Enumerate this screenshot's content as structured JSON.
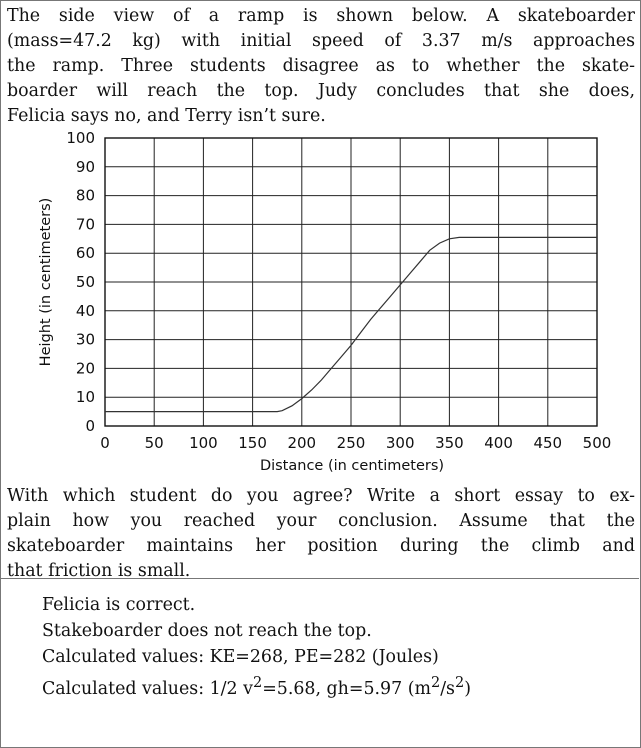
{
  "header_fragment": "",
  "problem": {
    "intro_lines": [
      "The side view of a ramp is shown below.  A skateboarder",
      "(mass=47.2 kg) with initial speed of 3.37 m/s approaches",
      "the ramp.  Three students disagree as to whether the skate-",
      "boarder will reach the top.  Judy concludes that she does,",
      "Felicia says no, and Terry isn’t sure."
    ],
    "question_lines": [
      "With which student do you agree? Write a short essay to ex-",
      "plain how you reached your conclusion.  Assume that the",
      "skateboarder maintains her position during the climb and",
      "that friction is small."
    ]
  },
  "chart_data": {
    "type": "line",
    "title": "",
    "xlabel": "Distance (in centimeters)",
    "ylabel": "Height (in centimeters)",
    "xlim": [
      0,
      500
    ],
    "ylim": [
      0,
      100
    ],
    "x_ticks": [
      0,
      50,
      100,
      150,
      200,
      250,
      300,
      350,
      400,
      450,
      500
    ],
    "y_ticks": [
      0,
      10,
      20,
      30,
      40,
      50,
      60,
      70,
      80,
      90,
      100
    ],
    "grid": true,
    "series": [
      {
        "x": [
          0,
          150,
          165,
          175,
          180,
          190,
          200,
          210,
          220,
          230,
          240,
          250,
          260,
          270,
          280,
          290,
          300,
          310,
          320,
          330,
          340,
          350,
          360,
          370,
          380,
          400,
          450,
          500
        ],
        "y": [
          5,
          5,
          5,
          5,
          5.3,
          7,
          9.5,
          12.5,
          16,
          20,
          24,
          28,
          32.5,
          37,
          41,
          45,
          49,
          53,
          57,
          61,
          63.5,
          65,
          65.5,
          65.5,
          65.5,
          65.5,
          65.5,
          65.5
        ]
      }
    ]
  },
  "answer": {
    "lines": [
      "Felicia is correct.",
      "Stakeboarder does not reach the top.",
      "Calculated values: KE=268, PE=282 (Joules)"
    ],
    "line4_prefix": "Calculated values: 1/2 v",
    "line4_sup1": "2",
    "line4_mid": "=5.68, gh=5.97 (m",
    "line4_sup2": "2",
    "line4_mid2": "/s",
    "line4_sup3": "2",
    "line4_suffix": ")"
  }
}
